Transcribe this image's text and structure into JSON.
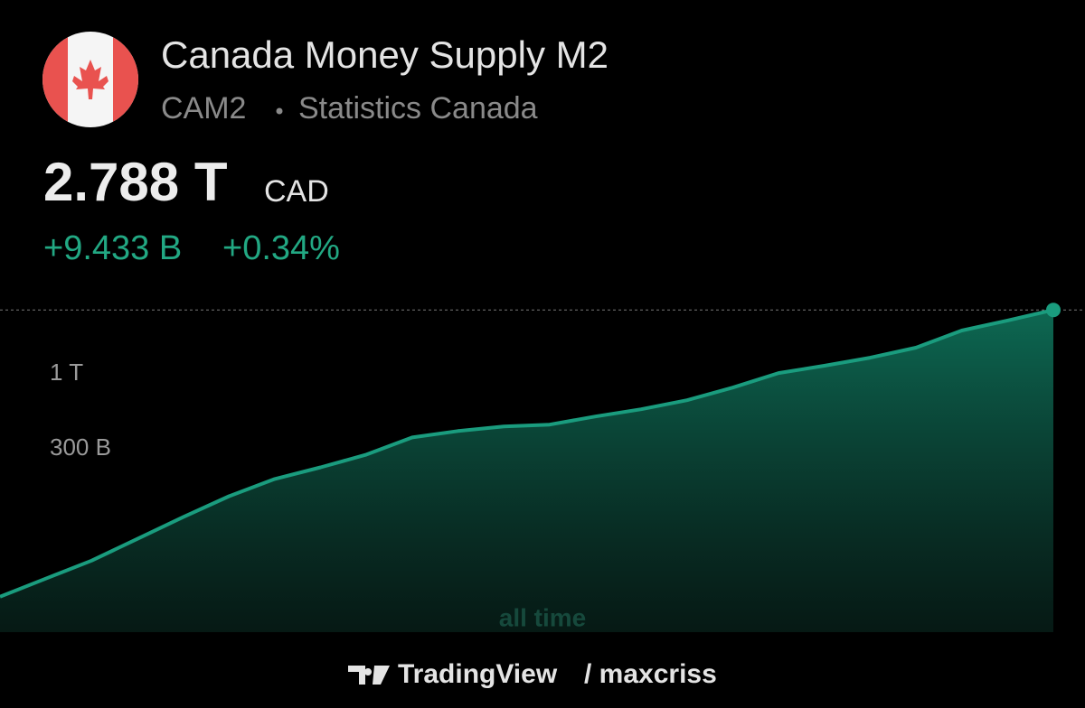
{
  "header": {
    "title": "Canada Money Supply M2",
    "symbol": "CAM2",
    "source": "Statistics Canada",
    "price": "2.788 T",
    "currency": "CAD",
    "change": "+9.433 B",
    "change_percent": "+0.34%"
  },
  "range_label": "all time",
  "footer": {
    "brand": "TradingView",
    "author": "/ maxcriss"
  },
  "chart_data": {
    "type": "area",
    "log_scale": true,
    "grid": false,
    "color": "#1a9c7e",
    "values": [
      28.2,
      37.7,
      50.3,
      71.3,
      101,
      141,
      186,
      224,
      275,
      362,
      401,
      431,
      444,
      506,
      568,
      656,
      804,
      1015,
      1140,
      1298,
      1523,
      2005,
      2354,
      2788
    ],
    "ylim": [
      16,
      3900
    ],
    "yticks": [
      {
        "value": 1000,
        "label": "1 T"
      },
      {
        "value": 300,
        "label": "300 B"
      }
    ]
  }
}
